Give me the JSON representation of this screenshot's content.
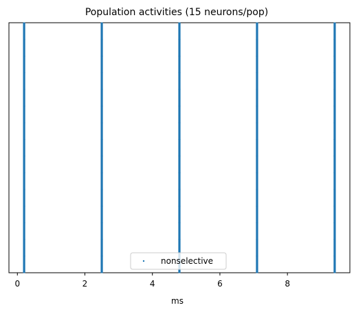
{
  "chart_data": {
    "type": "scatter",
    "title": "Population activities (15 neurons/pop)",
    "xlabel": "ms",
    "ylabel": "",
    "xlim": [
      -0.25,
      9.85
    ],
    "ylim": [
      -0.5,
      14.5
    ],
    "xticks": [
      0,
      2,
      4,
      6,
      8
    ],
    "xtick_labels": [
      "0",
      "2",
      "4",
      "6",
      "8"
    ],
    "y_ticks_visible": false,
    "grid": false,
    "legend": {
      "placement": "lower-center"
    },
    "series": [
      {
        "name": "nonselective",
        "color": "#1f77b4",
        "marker": "point",
        "spike_times_ms": [
          0.2,
          2.5,
          4.8,
          7.1,
          9.4
        ],
        "neuron_ids": [
          0,
          1,
          2,
          3,
          4,
          5,
          6,
          7,
          8,
          9,
          10,
          11,
          12,
          13,
          14
        ]
      }
    ]
  }
}
